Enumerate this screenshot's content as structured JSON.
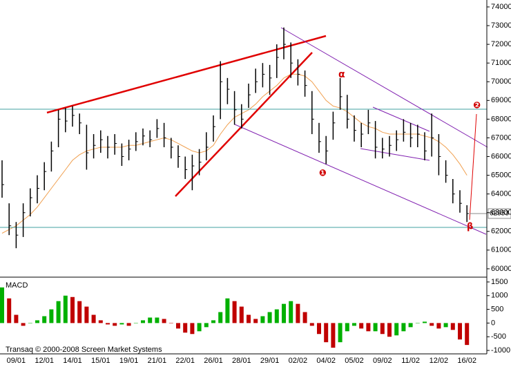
{
  "chart_data": [
    {
      "type": "ohlc",
      "bar_color": "#000000",
      "high": [
        65800,
        63500,
        62500,
        63500,
        64300,
        65000,
        65700,
        66800,
        68500,
        68600,
        68700,
        68300,
        67700,
        67200,
        67400,
        67100,
        67200,
        66700,
        66900,
        67300,
        67500,
        67400,
        68000,
        67800,
        67000,
        66600,
        66000,
        66100,
        66400,
        67300,
        68200,
        71100,
        70200,
        69500,
        68800,
        69900,
        70700,
        71000,
        70900,
        72000,
        72900,
        72100,
        71200,
        70600,
        69500,
        67800,
        67100,
        68400,
        70200,
        69300,
        68200,
        67800,
        68500,
        67900,
        67000,
        67100,
        67400,
        68000,
        67800,
        67700,
        67300,
        68300,
        67200,
        65800,
        64800,
        64200,
        63400
      ],
      "low": [
        63800,
        61800,
        61100,
        61700,
        62800,
        63500,
        64200,
        65200,
        66500,
        67300,
        67600,
        67200,
        65300,
        65900,
        66200,
        65900,
        66100,
        65500,
        65800,
        66300,
        66600,
        66500,
        67000,
        66500,
        65900,
        65400,
        64800,
        64200,
        65000,
        65800,
        66800,
        68000,
        68800,
        67700,
        67500,
        68600,
        69400,
        69700,
        69300,
        70200,
        71200,
        70200,
        69800,
        69200,
        67200,
        66200,
        65600,
        66900,
        68500,
        67500,
        66800,
        66500,
        67200,
        65900,
        65900,
        66000,
        66300,
        66800,
        66500,
        66500,
        65800,
        66000,
        65000,
        64600,
        63500,
        63000,
        62500
      ],
      "close": [
        64500,
        62300,
        61800,
        63000,
        63800,
        64300,
        65200,
        66300,
        68000,
        67900,
        68200,
        67800,
        66200,
        66600,
        66900,
        66500,
        66700,
        66000,
        66400,
        66800,
        67100,
        66900,
        67500,
        67000,
        66500,
        66000,
        65300,
        65500,
        65700,
        66500,
        67600,
        70000,
        69600,
        68500,
        68000,
        69300,
        70000,
        70400,
        70200,
        71300,
        72000,
        71000,
        70400,
        69800,
        68000,
        66800,
        66300,
        67800,
        69200,
        68000,
        67400,
        67200,
        67800,
        66500,
        66400,
        66600,
        66900,
        67300,
        67000,
        67200,
        66300,
        67000,
        66000,
        65000,
        64000,
        63500,
        62953
      ],
      "close_label": "62953",
      "ma": {
        "color": "#f0a050",
        "values": [
          61900,
          62100,
          62300,
          62600,
          62900,
          63300,
          63800,
          64300,
          64800,
          65300,
          65800,
          66100,
          66300,
          66400,
          66500,
          66500,
          66500,
          66500,
          66600,
          66600,
          66700,
          66800,
          66900,
          67000,
          66900,
          66700,
          66500,
          66300,
          66200,
          66300,
          66600,
          67200,
          67700,
          68100,
          68300,
          68500,
          68800,
          69200,
          69500,
          69800,
          70200,
          70400,
          70400,
          70300,
          70000,
          69500,
          69000,
          68700,
          68600,
          68400,
          68100,
          67800,
          67600,
          67500,
          67300,
          67200,
          67200,
          67200,
          67200,
          67200,
          67100,
          67000,
          66800,
          66500,
          66100,
          65600,
          65000
        ]
      },
      "ylim": [
        59590,
        74370
      ],
      "yticks": [
        60000,
        61000,
        62000,
        63000,
        64000,
        65000,
        66000,
        67000,
        68000,
        69000,
        70000,
        71000,
        72000,
        73000,
        74000
      ],
      "annotations": [
        "α",
        "❶",
        "β",
        "❷"
      ]
    },
    {
      "type": "histogram",
      "title": "MACD",
      "up_color": "#00b000",
      "down_color": "#c00000",
      "categories": [
        null,
        null,
        "09/01",
        null,
        null,
        null,
        "12/01",
        null,
        null,
        null,
        "14/01",
        null,
        null,
        null,
        "15/01",
        null,
        null,
        null,
        "19/01",
        null,
        null,
        null,
        "21/01",
        null,
        null,
        null,
        "22/01",
        null,
        null,
        null,
        "26/01",
        null,
        null,
        null,
        "28/01",
        null,
        null,
        null,
        "29/01",
        null,
        null,
        null,
        "02/02",
        null,
        null,
        null,
        "04/02",
        null,
        null,
        null,
        "05/02",
        null,
        null,
        null,
        "09/02",
        null,
        null,
        null,
        "11/02",
        null,
        null,
        null,
        "12/02",
        null,
        null,
        null,
        "16/02"
      ],
      "values": [
        1300,
        900,
        300,
        -100,
        0,
        100,
        250,
        500,
        800,
        1000,
        950,
        800,
        600,
        300,
        100,
        -50,
        -100,
        -50,
        -100,
        0,
        100,
        200,
        200,
        150,
        0,
        -200,
        -350,
        -400,
        -300,
        -150,
        100,
        400,
        900,
        800,
        600,
        300,
        150,
        250,
        400,
        500,
        700,
        800,
        700,
        400,
        -100,
        -400,
        -700,
        -900,
        -700,
        -300,
        -100,
        -200,
        -300,
        -300,
        -400,
        -500,
        -450,
        -300,
        -150,
        0,
        50,
        -100,
        -200,
        -150,
        -250,
        -600,
        -800
      ],
      "ylim": [
        -1125,
        1650
      ],
      "yticks": [
        -1000,
        -500,
        0,
        500,
        1000,
        1500
      ],
      "footer": "Transaq © 2000-2008 Screen Market Systems"
    }
  ]
}
